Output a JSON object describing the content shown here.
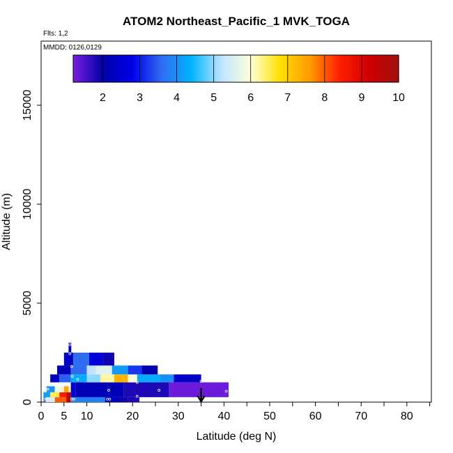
{
  "chart_data": {
    "type": "heatmap",
    "title": "ATOM2 Northeast_Pacific_1 MVK_TOGA",
    "flights_note": "Flts: 1,2",
    "date_note": "MMDD: 0126,0129",
    "xlabel": "Latitude (deg N)",
    "ylabel": "Altitude (m)",
    "xlim": [
      0,
      85
    ],
    "ylim": [
      0,
      17500
    ],
    "x_ticks": [
      0,
      5,
      10,
      20,
      30,
      40,
      50,
      60,
      70,
      80
    ],
    "y_ticks": [
      0,
      5000,
      10000,
      15000
    ],
    "colorbar": {
      "min": 1.2,
      "max": 10,
      "ticks": [
        2,
        3,
        4,
        5,
        6,
        7,
        8,
        9,
        10
      ],
      "colors": [
        "#7a1fe0",
        "#0000a8",
        "#0000e8",
        "#2f6df0",
        "#00b4ff",
        "#bfe4ff",
        "#ffffd8",
        "#ffe000",
        "#ff9a00",
        "#ff2000",
        "#d00000",
        "#a01010"
      ]
    },
    "bands": [
      {
        "alt_low": 0,
        "alt_high": 250,
        "lat_start": 0.5,
        "lat_end": 21.5,
        "segments": [
          [
            0.5,
            1.0,
            3.5
          ],
          [
            1.0,
            3.0,
            5.5
          ],
          [
            3.0,
            5.5,
            8.0
          ],
          [
            5.5,
            6.5,
            9.5
          ],
          [
            6.5,
            14.0,
            3.8
          ],
          [
            14.0,
            17.0,
            2.3
          ],
          [
            17.0,
            19.0,
            1.9
          ],
          [
            19.0,
            21.5,
            1.8
          ]
        ]
      },
      {
        "alt_low": 250,
        "alt_high": 500,
        "lat_start": 0.5,
        "lat_end": 6.5,
        "segments": [
          [
            0.5,
            2.0,
            4.2
          ],
          [
            2.0,
            4.0,
            6.5
          ],
          [
            4.0,
            5.5,
            8.5
          ],
          [
            5.5,
            6.5,
            9.6
          ]
        ]
      },
      {
        "alt_low": 500,
        "alt_high": 800,
        "lat_start": 1.2,
        "lat_end": 7.0,
        "segments": [
          [
            1.2,
            3.0,
            4.0
          ],
          [
            3.0,
            5.0,
            5.8
          ],
          [
            5.0,
            6.0,
            7.5
          ],
          [
            6.0,
            7.0,
            6.2
          ]
        ]
      },
      {
        "alt_low": 250,
        "alt_high": 1000,
        "lat_start": 6.5,
        "lat_end": 41.0,
        "segments": [
          [
            6.5,
            7.5,
            2.5
          ],
          [
            7.5,
            18.0,
            2.2
          ],
          [
            18.0,
            28.0,
            1.8
          ],
          [
            28.0,
            41.0,
            1.3
          ]
        ]
      },
      {
        "alt_low": 1000,
        "alt_high": 1400,
        "lat_start": 2.0,
        "lat_end": 35.0,
        "segments": [
          [
            2.0,
            4.0,
            2.3
          ],
          [
            4.0,
            6.5,
            3.5
          ],
          [
            6.5,
            10.0,
            4.3
          ],
          [
            10.0,
            13.0,
            5.0
          ],
          [
            13.0,
            16.0,
            6.2
          ],
          [
            16.0,
            19.0,
            7.3
          ],
          [
            19.0,
            21.0,
            6.0
          ],
          [
            21.0,
            26.0,
            4.3
          ],
          [
            26.0,
            29.0,
            4.0
          ],
          [
            29.0,
            35.0,
            2.4
          ]
        ]
      },
      {
        "alt_low": 1400,
        "alt_high": 1850,
        "lat_start": 3.5,
        "lat_end": 25.5,
        "segments": [
          [
            3.5,
            6.5,
            2.2
          ],
          [
            6.5,
            10.0,
            3.6
          ],
          [
            10.0,
            12.0,
            5.2
          ],
          [
            12.0,
            15.5,
            5.6
          ],
          [
            15.5,
            19.0,
            4.1
          ],
          [
            19.0,
            22.0,
            3.2
          ],
          [
            22.0,
            25.5,
            2.1
          ]
        ]
      },
      {
        "alt_low": 1850,
        "alt_high": 2500,
        "lat_start": 5.0,
        "lat_end": 16.0,
        "segments": [
          [
            5.0,
            7.0,
            2.3
          ],
          [
            7.0,
            10.5,
            3.6
          ],
          [
            10.5,
            13.5,
            2.6
          ],
          [
            13.5,
            16.0,
            1.9
          ]
        ]
      },
      {
        "alt_low": 2500,
        "alt_high": 3000,
        "lat_start": 6.0,
        "lat_end": 6.6,
        "segments": [
          [
            6.0,
            6.6,
            2.2
          ]
        ]
      }
    ],
    "sample_points": [
      [
        0.7,
        150
      ],
      [
        6.7,
        150
      ],
      [
        7.2,
        150
      ],
      [
        14.5,
        150
      ],
      [
        15.0,
        150
      ],
      [
        21.0,
        300
      ],
      [
        1.5,
        650
      ],
      [
        14.8,
        600
      ],
      [
        25.8,
        600
      ],
      [
        40.5,
        550
      ],
      [
        21.0,
        1000
      ],
      [
        35.0,
        1050
      ],
      [
        3.0,
        900
      ],
      [
        8.0,
        1150
      ],
      [
        6.8,
        1300
      ],
      [
        6.7,
        1800
      ],
      [
        6.3,
        2450
      ],
      [
        6.3,
        2900
      ]
    ],
    "arrow_latitude": 35
  }
}
